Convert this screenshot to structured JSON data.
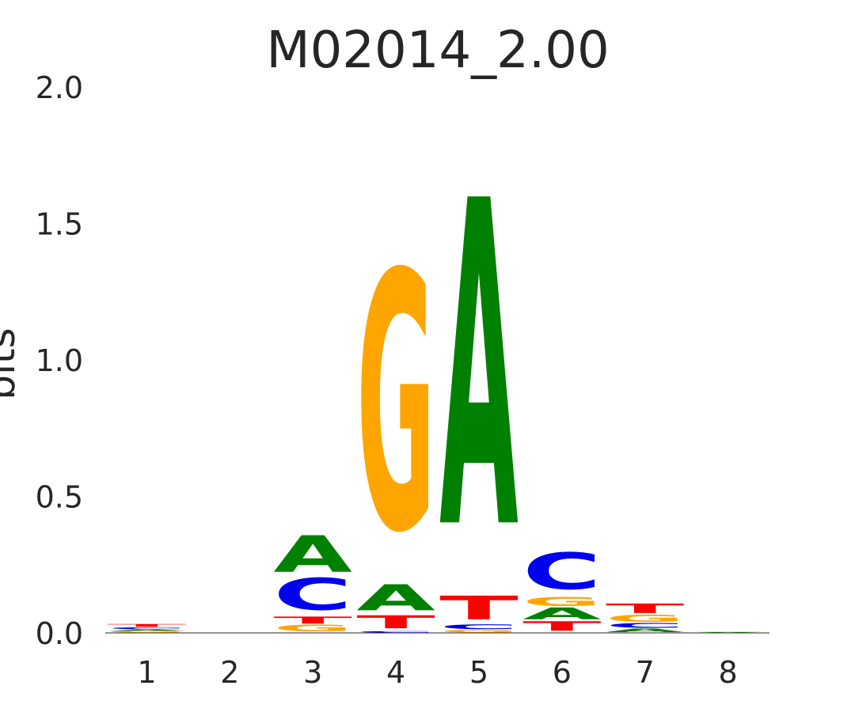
{
  "chart_data": {
    "type": "sequence-logo",
    "title": "M02014_2.00",
    "ylabel": "bits",
    "ylim": [
      0,
      2.0
    ],
    "yticks": [
      "0.0",
      "0.5",
      "1.0",
      "1.5",
      "2.0"
    ],
    "positions": [
      "1",
      "2",
      "3",
      "4",
      "5",
      "6",
      "7",
      "8"
    ],
    "colors": {
      "A": "#008000",
      "C": "#0000ee",
      "G": "#ffa500",
      "T": "#ff0000"
    },
    "stacks": [
      [
        {
          "letter": "G",
          "height": 0.006
        },
        {
          "letter": "A",
          "height": 0.006
        },
        {
          "letter": "C",
          "height": 0.008
        },
        {
          "letter": "T",
          "height": 0.012
        }
      ],
      [],
      [
        {
          "letter": "G",
          "height": 0.028
        },
        {
          "letter": "T",
          "height": 0.03
        },
        {
          "letter": "C",
          "height": 0.135
        },
        {
          "letter": "A",
          "height": 0.155
        }
      ],
      [
        {
          "letter": "C",
          "height": 0.006
        },
        {
          "letter": "T",
          "height": 0.055
        },
        {
          "letter": "A",
          "height": 0.11
        },
        {
          "letter": "G",
          "height": 1.09
        }
      ],
      [
        {
          "letter": "G",
          "height": 0.01
        },
        {
          "letter": "C",
          "height": 0.02
        },
        {
          "letter": "T",
          "height": 0.1
        },
        {
          "letter": "A",
          "height": 1.38
        }
      ],
      [
        {
          "letter": "T",
          "height": 0.04
        },
        {
          "letter": "A",
          "height": 0.05
        },
        {
          "letter": "G",
          "height": 0.04
        },
        {
          "letter": "C",
          "height": 0.155
        }
      ],
      [
        {
          "letter": "A",
          "height": 0.015
        },
        {
          "letter": "C",
          "height": 0.02
        },
        {
          "letter": "G",
          "height": 0.03
        },
        {
          "letter": "T",
          "height": 0.04
        }
      ],
      [
        {
          "letter": "A",
          "height": 0.003
        },
        {
          "letter": "G",
          "height": 0.003
        }
      ]
    ]
  }
}
